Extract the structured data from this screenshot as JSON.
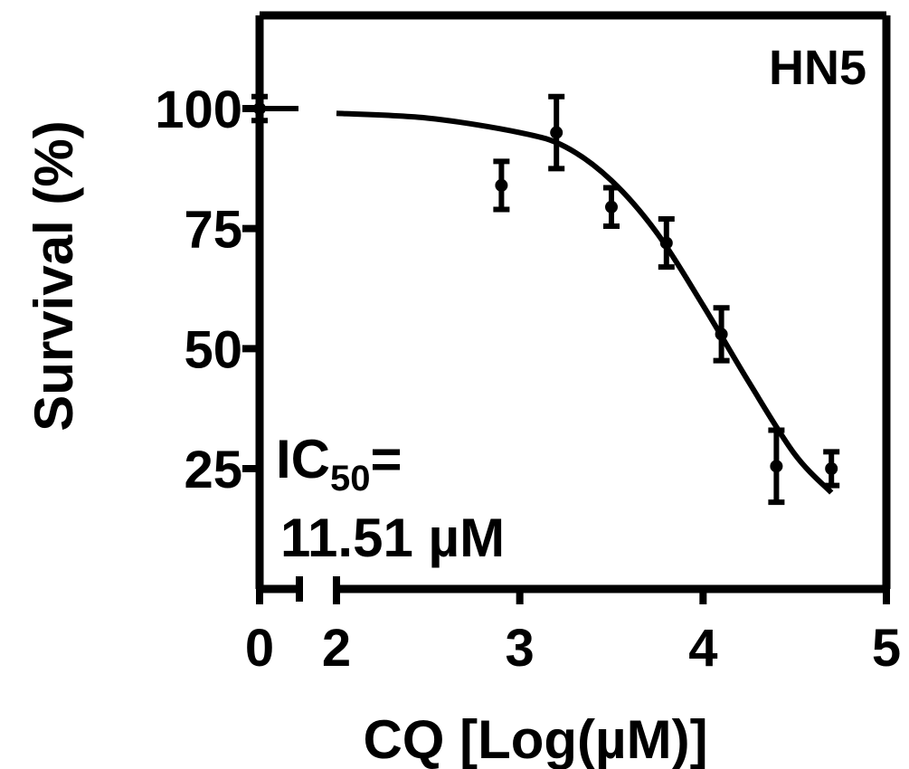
{
  "chart_data": {
    "type": "scatter",
    "panel_label": "HN5",
    "xlabel": "CQ [Log(µM)]",
    "ylabel": "Survival (%)",
    "x_ticks": [
      "0",
      "2",
      "3",
      "4",
      "5"
    ],
    "y_ticks": [
      "100",
      "75",
      "50",
      "25"
    ],
    "x_axis_break": [
      0,
      2
    ],
    "xlim": [
      0,
      5
    ],
    "ylim": [
      0,
      120
    ],
    "annotation": {
      "prefix": "IC",
      "subscript": "50",
      "suffix": "=",
      "value": "11.51 µM"
    },
    "points": [
      {
        "x": 0,
        "y": 100,
        "err": 2.5
      },
      {
        "x": 2.9,
        "y": 84,
        "err": 5
      },
      {
        "x": 3.2,
        "y": 95,
        "err": 7.5
      },
      {
        "x": 3.5,
        "y": 79.5,
        "err": 4
      },
      {
        "x": 3.8,
        "y": 72,
        "err": 5
      },
      {
        "x": 4.1,
        "y": 53,
        "err": 5.5
      },
      {
        "x": 4.4,
        "y": 25.5,
        "err": 7.5
      },
      {
        "x": 4.7,
        "y": 25,
        "err": 3.5
      }
    ],
    "fit": {
      "type": "sigmoidal dose-response",
      "x": [
        0,
        2.0,
        2.5,
        3.0,
        3.25,
        3.5,
        3.75,
        4.0,
        4.25,
        4.5,
        4.7
      ],
      "y": [
        100,
        99,
        98,
        95,
        92,
        85,
        74,
        59,
        43,
        28,
        20
      ]
    },
    "grid": false,
    "legend": "none"
  }
}
